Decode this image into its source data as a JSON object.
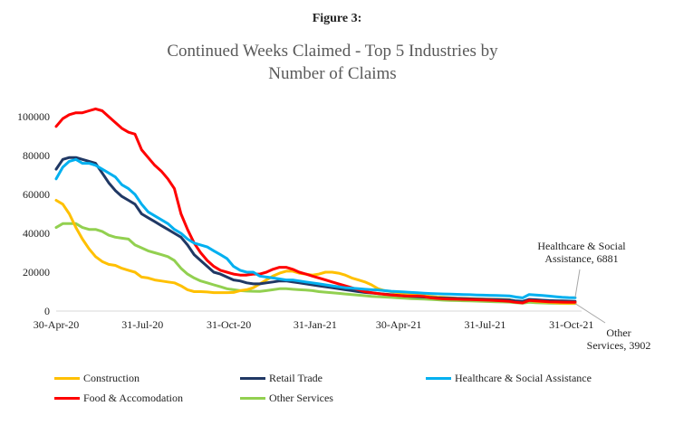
{
  "figure_label": "Figure 3:",
  "chart_data": {
    "type": "line",
    "title_lines": [
      "Continued Weeks Claimed - Top 5 Industries by",
      "Number of Claims"
    ],
    "xlabel": "",
    "ylabel": "",
    "ylim": [
      0,
      100000
    ],
    "yticks": [
      0,
      20000,
      40000,
      60000,
      80000,
      100000
    ],
    "ytick_labels": [
      "0",
      "20000",
      "40000",
      "60000",
      "80000",
      "100000"
    ],
    "x_dates": [
      "2020-04-30",
      "2020-05-07",
      "2020-05-14",
      "2020-05-21",
      "2020-05-28",
      "2020-06-04",
      "2020-06-11",
      "2020-06-18",
      "2020-06-25",
      "2020-07-02",
      "2020-07-09",
      "2020-07-16",
      "2020-07-23",
      "2020-07-30",
      "2020-08-06",
      "2020-08-13",
      "2020-08-20",
      "2020-08-27",
      "2020-09-03",
      "2020-09-10",
      "2020-09-17",
      "2020-09-24",
      "2020-10-01",
      "2020-10-08",
      "2020-10-15",
      "2020-10-22",
      "2020-10-29",
      "2020-11-05",
      "2020-11-12",
      "2020-11-19",
      "2020-11-26",
      "2020-12-03",
      "2020-12-10",
      "2020-12-17",
      "2020-12-24",
      "2020-12-31",
      "2021-01-07",
      "2021-01-14",
      "2021-01-21",
      "2021-01-28",
      "2021-02-04",
      "2021-02-11",
      "2021-02-18",
      "2021-02-25",
      "2021-03-04",
      "2021-03-11",
      "2021-03-18",
      "2021-03-25",
      "2021-04-01",
      "2021-04-08",
      "2021-04-15",
      "2021-04-22",
      "2021-04-29",
      "2021-05-06",
      "2021-05-13",
      "2021-05-20",
      "2021-05-27",
      "2021-06-03",
      "2021-06-10",
      "2021-06-17",
      "2021-06-24",
      "2021-07-01",
      "2021-07-08",
      "2021-07-15",
      "2021-07-22",
      "2021-07-29",
      "2021-08-05",
      "2021-08-12",
      "2021-08-19",
      "2021-08-26",
      "2021-09-02",
      "2021-09-09",
      "2021-09-16",
      "2021-09-23",
      "2021-09-30",
      "2021-10-07",
      "2021-10-14",
      "2021-10-21",
      "2021-10-28",
      "2021-11-04"
    ],
    "xticks": [
      {
        "date": "2020-04-30",
        "label": "30-Apr-20"
      },
      {
        "date": "2020-07-31",
        "label": "31-Jul-20"
      },
      {
        "date": "2020-10-31",
        "label": "31-Oct-20"
      },
      {
        "date": "2021-01-31",
        "label": "31-Jan-21"
      },
      {
        "date": "2021-04-30",
        "label": "30-Apr-21"
      },
      {
        "date": "2021-07-31",
        "label": "31-Jul-21"
      },
      {
        "date": "2021-10-31",
        "label": "31-Oct-21"
      }
    ],
    "series": [
      {
        "name": "Construction",
        "color": "#ffc000",
        "values": [
          57000,
          55000,
          50000,
          43000,
          37000,
          32000,
          28000,
          25500,
          24000,
          23500,
          22000,
          21000,
          20000,
          17500,
          17000,
          16000,
          15500,
          15000,
          14500,
          13000,
          11000,
          10000,
          10000,
          9800,
          9500,
          9500,
          9500,
          9600,
          10500,
          11000,
          12000,
          14000,
          16000,
          18000,
          19500,
          20500,
          20500,
          19500,
          19000,
          18500,
          19000,
          20000,
          20000,
          19500,
          18500,
          17000,
          16000,
          15000,
          13500,
          11500,
          10500,
          10000,
          9500,
          9000,
          8700,
          8300,
          8000,
          7500,
          7200,
          7000,
          6800,
          6600,
          6500,
          6400,
          6300,
          6200,
          6100,
          6000,
          5900,
          5800,
          5000,
          4500,
          5500,
          5000,
          4800,
          4500,
          4300,
          4100,
          4000,
          4000
        ]
      },
      {
        "name": "Retail Trade",
        "color": "#203864",
        "values": [
          73000,
          78000,
          79000,
          79000,
          78000,
          77000,
          76000,
          71000,
          66000,
          62000,
          59000,
          57000,
          55000,
          50000,
          48000,
          46000,
          44000,
          42000,
          40000,
          38000,
          34000,
          29000,
          26000,
          23000,
          20000,
          19000,
          17500,
          16000,
          15500,
          14500,
          14000,
          14000,
          14500,
          15000,
          15500,
          15500,
          15000,
          14500,
          14000,
          13500,
          13000,
          12500,
          12000,
          11500,
          11000,
          10500,
          10000,
          9600,
          9300,
          9000,
          8700,
          8400,
          8100,
          7800,
          7600,
          7400,
          7200,
          7000,
          6800,
          6700,
          6600,
          6500,
          6400,
          6300,
          6200,
          6100,
          6000,
          5900,
          5800,
          5700,
          5200,
          5000,
          6000,
          5800,
          5600,
          5400,
          5300,
          5200,
          5100,
          5000
        ]
      },
      {
        "name": "Healthcare & Social Assistance",
        "color": "#00b0f0",
        "values": [
          68000,
          74000,
          77000,
          78000,
          76000,
          76000,
          75000,
          73000,
          71000,
          69000,
          65000,
          63000,
          60000,
          55000,
          51000,
          49000,
          47000,
          45000,
          42000,
          40000,
          37000,
          35000,
          34000,
          33000,
          31000,
          29000,
          27000,
          23000,
          21000,
          20000,
          20000,
          18000,
          17500,
          17000,
          16500,
          16000,
          16000,
          15500,
          15000,
          14500,
          14000,
          13500,
          13000,
          12500,
          12000,
          11800,
          11500,
          11200,
          11000,
          10800,
          10500,
          10200,
          10000,
          9800,
          9600,
          9400,
          9200,
          9000,
          8900,
          8800,
          8700,
          8600,
          8500,
          8400,
          8300,
          8200,
          8100,
          8000,
          7900,
          7800,
          7200,
          6800,
          8500,
          8300,
          8000,
          7700,
          7400,
          7100,
          6950,
          6881
        ]
      },
      {
        "name": "Food & Accomodation",
        "color": "#ff0000",
        "values": [
          95000,
          99000,
          101000,
          102000,
          102000,
          103000,
          104000,
          103000,
          100000,
          97000,
          94000,
          92000,
          91000,
          83000,
          79000,
          75000,
          72000,
          68000,
          63000,
          50000,
          42000,
          35000,
          30000,
          26000,
          23000,
          21000,
          20000,
          19000,
          18500,
          18500,
          19000,
          19000,
          20000,
          21500,
          22500,
          22500,
          21500,
          20000,
          19000,
          18000,
          17000,
          16000,
          15000,
          14000,
          13000,
          12000,
          11000,
          10000,
          9500,
          9000,
          8600,
          8300,
          8000,
          7800,
          7700,
          7700,
          7500,
          6800,
          6500,
          6300,
          6200,
          6100,
          6000,
          5900,
          5800,
          5700,
          5600,
          5400,
          5200,
          5000,
          4500,
          4200,
          5500,
          5200,
          5000,
          4800,
          4700,
          4600,
          4500,
          4500
        ]
      },
      {
        "name": "Other Services",
        "color": "#92d050",
        "values": [
          43000,
          45000,
          45000,
          45000,
          43000,
          42000,
          42000,
          41000,
          39000,
          38000,
          37500,
          37000,
          34000,
          32500,
          31000,
          30000,
          29000,
          28000,
          26000,
          22000,
          19000,
          17000,
          15500,
          14500,
          13500,
          12500,
          11500,
          11000,
          10500,
          10300,
          10200,
          10100,
          10500,
          11000,
          11500,
          11500,
          11200,
          11000,
          10800,
          10500,
          10000,
          9700,
          9400,
          9100,
          8800,
          8500,
          8200,
          7900,
          7600,
          7400,
          7200,
          7000,
          6800,
          6600,
          6400,
          6300,
          6200,
          6000,
          5800,
          5600,
          5500,
          5400,
          5300,
          5200,
          5100,
          5000,
          4900,
          4800,
          4700,
          4600,
          4300,
          4100,
          4500,
          4300,
          4200,
          4100,
          4000,
          3950,
          3920,
          3902
        ]
      }
    ],
    "annotations": [
      {
        "series": "Healthcare & Social Assistance",
        "lines": [
          "Healthcare & Social",
          "Assistance, 6881"
        ]
      },
      {
        "series": "Other Services",
        "lines": [
          "Other",
          "Services, 3902"
        ]
      }
    ],
    "legend_position": "bottom"
  }
}
